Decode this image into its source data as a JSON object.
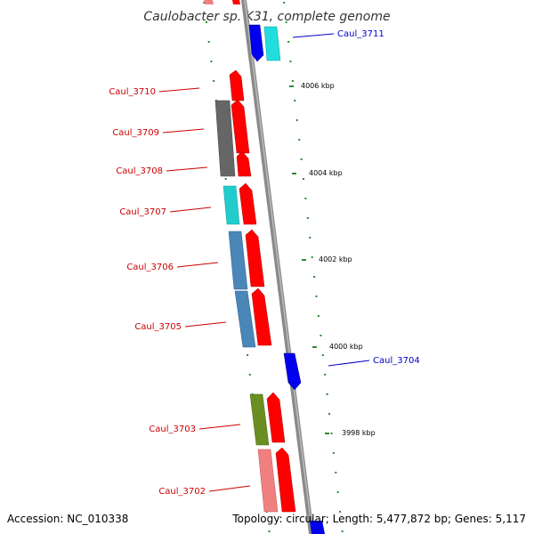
{
  "title": "Caulobacter sp. K31, complete genome",
  "footer": {
    "accession": "Accession: NC_010338",
    "summary": "Topology: circular; Length: 5,477,872 bp; Genes: 5,117"
  },
  "colors": {
    "label_forward": "#cc0000",
    "label_reverse": "#0000cc",
    "backbone": "#888888",
    "gc_dots": "#338833"
  },
  "gene_labels": [
    {
      "name": "Caul_3711",
      "side": "right"
    },
    {
      "name": "Caul_3710",
      "side": "left"
    },
    {
      "name": "Caul_3709",
      "side": "left"
    },
    {
      "name": "Caul_3708",
      "side": "left"
    },
    {
      "name": "Caul_3707",
      "side": "left"
    },
    {
      "name": "Caul_3706",
      "side": "left"
    },
    {
      "name": "Caul_3705",
      "side": "left"
    },
    {
      "name": "Caul_3704",
      "side": "right"
    },
    {
      "name": "Caul_3703",
      "side": "left"
    },
    {
      "name": "Caul_3702",
      "side": "left"
    }
  ],
  "ticks": [
    {
      "label": "4006 kbp"
    },
    {
      "label": "4004 kbp"
    },
    {
      "label": "4002 kbp"
    },
    {
      "label": "4000 kbp"
    },
    {
      "label": "3998 kbp"
    }
  ]
}
